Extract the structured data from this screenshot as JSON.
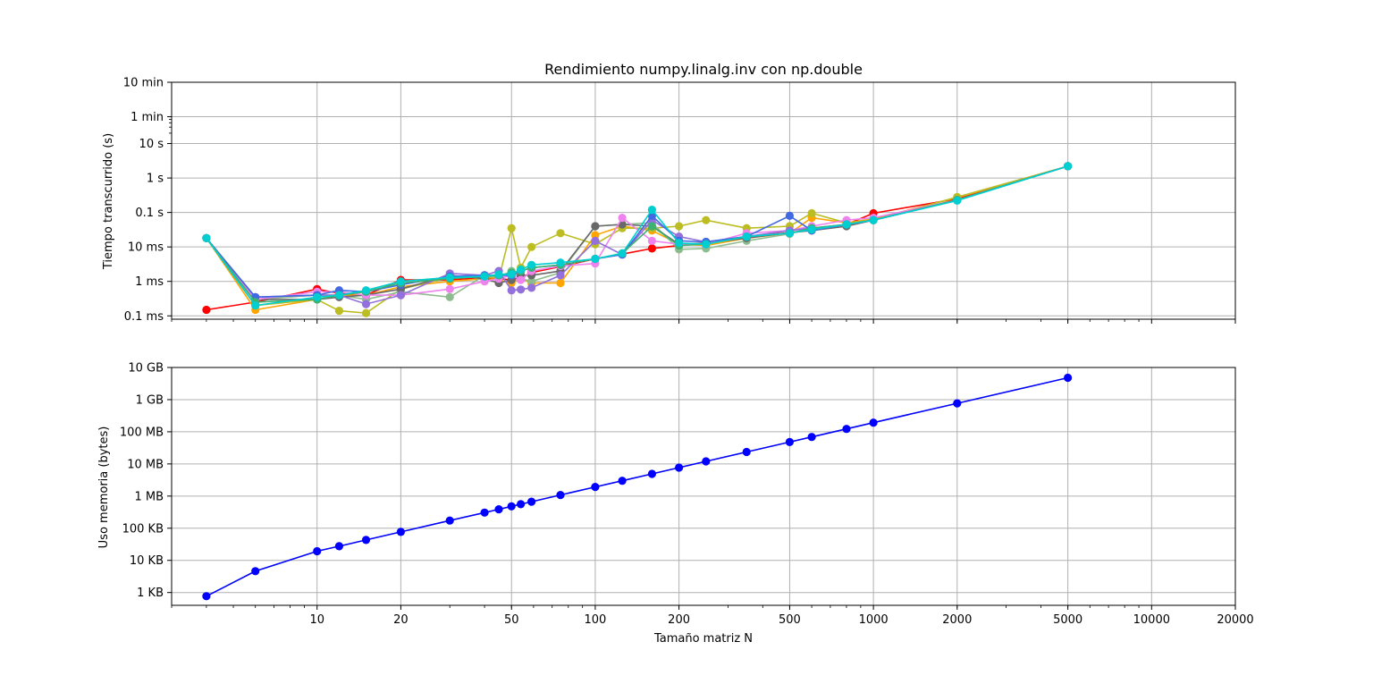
{
  "chart_data": [
    {
      "type": "line",
      "title": "Rendimiento numpy.linalg.inv con np.double",
      "xlabel": "",
      "ylabel": "Tiempo transcurrido (s)",
      "x_scale": "log",
      "y_scale": "log",
      "xlim": [
        3,
        20000
      ],
      "ylim": [
        8e-05,
        600
      ],
      "grid": true,
      "y_ticks": [
        {
          "value": 0.0001,
          "label": "0.1 ms"
        },
        {
          "value": 0.001,
          "label": "1 ms"
        },
        {
          "value": 0.01,
          "label": "10 ms"
        },
        {
          "value": 0.1,
          "label": "0.1 s"
        },
        {
          "value": 1,
          "label": "1 s"
        },
        {
          "value": 10,
          "label": "10 s"
        },
        {
          "value": 60,
          "label": "1 min"
        },
        {
          "value": 600,
          "label": "10 min"
        }
      ],
      "x_ticks": [
        10,
        20,
        50,
        100,
        200,
        500,
        1000,
        2000,
        5000,
        10000,
        20000
      ],
      "x": [
        4,
        6,
        10,
        12,
        15,
        20,
        30,
        40,
        45,
        50,
        54,
        59,
        75,
        100,
        125,
        160,
        200,
        250,
        350,
        500,
        600,
        800,
        1000,
        2000,
        5000
      ],
      "series": [
        {
          "color": "#ff0000",
          "values": [
            0.00015,
            0.00025,
            0.0006,
            0.00045,
            0.0004,
            0.0011,
            0.0011,
            0.0013,
            0.0012,
            0.0011,
            0.0013,
            0.0018,
            0.0027,
            0.0045,
            0.0062,
            0.009,
            0.011,
            0.013,
            0.02,
            0.026,
            0.032,
            0.045,
            0.095,
            0.25,
            2.2
          ]
        },
        {
          "color": "#ffa500",
          "values": [
            0.018,
            0.00015,
            0.0003,
            0.0004,
            0.0004,
            0.0007,
            0.001,
            0.0012,
            0.0011,
            0.0009,
            0.0012,
            0.0009,
            0.0009,
            0.022,
            0.04,
            0.03,
            0.012,
            0.011,
            0.018,
            0.025,
            0.07,
            0.05,
            0.065,
            0.27,
            2.2
          ]
        },
        {
          "color": "#bcbd22",
          "values": [
            0.018,
            0.0002,
            0.0003,
            0.00014,
            0.00012,
            0.0006,
            0.0013,
            0.0014,
            0.0012,
            0.035,
            0.0025,
            0.01,
            0.025,
            0.012,
            0.035,
            0.035,
            0.04,
            0.06,
            0.035,
            0.04,
            0.095,
            0.05,
            0.06,
            0.28,
            2.2
          ]
        },
        {
          "color": "#8fbc8f",
          "values": [
            0.018,
            0.0003,
            0.0004,
            0.0004,
            0.0003,
            0.0005,
            0.00035,
            0.0015,
            0.0013,
            0.002,
            0.0012,
            0.001,
            0.0018,
            0.04,
            0.045,
            0.05,
            0.0085,
            0.009,
            0.015,
            0.024,
            0.035,
            0.045,
            0.06,
            0.23,
            2.2
          ]
        },
        {
          "color": "#696969",
          "values": [
            0.018,
            0.0003,
            0.0003,
            0.00035,
            0.0004,
            0.0006,
            0.0015,
            0.0012,
            0.0009,
            0.0011,
            0.0015,
            0.0015,
            0.002,
            0.04,
            0.045,
            0.04,
            0.012,
            0.013,
            0.018,
            0.026,
            0.03,
            0.04,
            0.06,
            0.23,
            2.2
          ]
        },
        {
          "color": "#ee82ee",
          "values": [
            0.018,
            0.0003,
            0.0005,
            0.0005,
            0.0004,
            0.0004,
            0.0006,
            0.001,
            0.0012,
            0.0015,
            0.0011,
            0.002,
            0.0028,
            0.0033,
            0.07,
            0.015,
            0.012,
            0.012,
            0.025,
            0.03,
            0.04,
            0.06,
            0.07,
            0.23,
            2.2
          ]
        },
        {
          "color": "#9370db",
          "values": [
            0.018,
            0.00035,
            0.0004,
            0.0004,
            0.00022,
            0.0004,
            0.0017,
            0.0015,
            0.002,
            0.00055,
            0.00058,
            0.00065,
            0.0015,
            0.015,
            0.006,
            0.06,
            0.02,
            0.014,
            0.02,
            0.03,
            0.035,
            0.045,
            0.06,
            0.23,
            2.2
          ]
        },
        {
          "color": "#4169e1",
          "values": [
            0.018,
            0.00035,
            0.0004,
            0.00055,
            0.0005,
            0.0008,
            0.0014,
            0.0015,
            0.0015,
            0.0015,
            0.002,
            0.0025,
            0.003,
            0.0045,
            0.006,
            0.08,
            0.015,
            0.014,
            0.02,
            0.08,
            0.03,
            0.045,
            0.06,
            0.23,
            2.2
          ]
        },
        {
          "color": "#3cb371",
          "values": [
            0.018,
            0.00025,
            0.0003,
            0.0004,
            0.0005,
            0.0009,
            0.0012,
            0.0014,
            0.0015,
            0.0018,
            0.002,
            0.0025,
            0.003,
            0.0045,
            0.0065,
            0.04,
            0.011,
            0.012,
            0.02,
            0.025,
            0.035,
            0.045,
            0.06,
            0.23,
            2.2
          ]
        },
        {
          "color": "#00ced1",
          "values": [
            0.018,
            0.0002,
            0.00035,
            0.0004,
            0.00055,
            0.001,
            0.0013,
            0.0014,
            0.0016,
            0.0016,
            0.0022,
            0.003,
            0.0035,
            0.0045,
            0.0065,
            0.12,
            0.013,
            0.012,
            0.02,
            0.025,
            0.032,
            0.045,
            0.06,
            0.22,
            2.2
          ]
        }
      ]
    },
    {
      "type": "line",
      "title": "",
      "xlabel": "Tamaño matriz N",
      "ylabel": "Uso memoria (bytes)",
      "x_scale": "log",
      "y_scale": "log",
      "xlim": [
        3,
        20000
      ],
      "ylim": [
        400,
        10000000000
      ],
      "grid": true,
      "y_ticks": [
        {
          "value": 1000,
          "label": "1 KB"
        },
        {
          "value": 10000,
          "label": "10 KB"
        },
        {
          "value": 100000,
          "label": "100 KB"
        },
        {
          "value": 1000000,
          "label": "1 MB"
        },
        {
          "value": 10000000,
          "label": "10 MB"
        },
        {
          "value": 100000000,
          "label": "100 MB"
        },
        {
          "value": 1000000000,
          "label": "1 GB"
        },
        {
          "value": 10000000000,
          "label": "10 GB"
        }
      ],
      "x_ticks": [
        10,
        20,
        50,
        100,
        200,
        500,
        1000,
        2000,
        5000,
        10000,
        20000
      ],
      "x": [
        4,
        6,
        10,
        12,
        15,
        20,
        30,
        40,
        45,
        50,
        54,
        59,
        75,
        100,
        125,
        160,
        200,
        250,
        350,
        500,
        600,
        800,
        1000,
        2000,
        5000
      ],
      "series": [
        {
          "color": "#0000ff",
          "values": [
            768,
            4608,
            19200,
            27648,
            43200,
            76800,
            172800,
            307200,
            388800,
            480000,
            559872,
            668352,
            1080000,
            1920000,
            3000000,
            4915200,
            7680000,
            12000000,
            23520000,
            48000000,
            69120000,
            122880000,
            192000000,
            768000000,
            4800000000
          ]
        }
      ]
    }
  ]
}
